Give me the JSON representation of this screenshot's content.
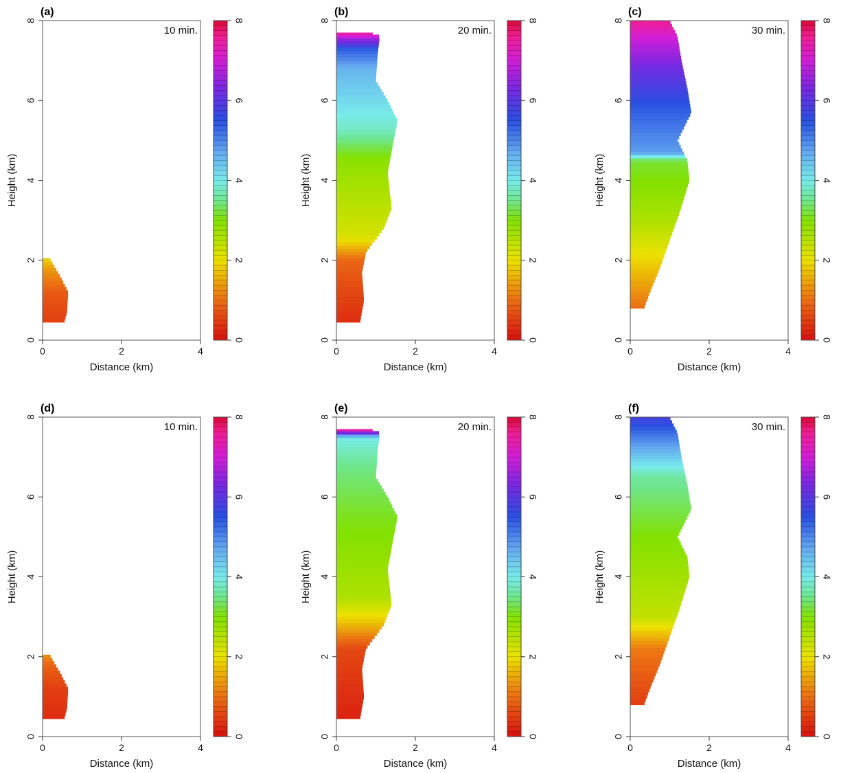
{
  "chart_data": [
    {
      "type": "heatmap",
      "panel": "(a)",
      "time_label": "10 min.",
      "xlabel": "Distance (km)",
      "ylabel": "Height (km)",
      "xlim": [
        0,
        4
      ],
      "ylim": [
        0,
        8
      ],
      "xticks": [
        "0",
        "2",
        "4"
      ],
      "yticks": [
        "0",
        "2",
        "4",
        "6",
        "8"
      ],
      "colorbar": {
        "range": [
          0,
          8
        ],
        "ticks": [
          "0",
          "2",
          "4",
          "6",
          "8"
        ]
      },
      "region": {
        "bottom_km": 0.45,
        "top_km": 2.05,
        "profile": [
          [
            0.45,
            0.55
          ],
          [
            0.7,
            0.62
          ],
          [
            1.2,
            0.65
          ],
          [
            1.6,
            0.45
          ],
          [
            1.85,
            0.3
          ],
          [
            2.05,
            0.18
          ]
        ]
      },
      "value_profile": [
        [
          0.45,
          0.5
        ],
        [
          1.2,
          0.8
        ],
        [
          1.8,
          1.4
        ],
        [
          2.05,
          1.9
        ]
      ]
    },
    {
      "type": "heatmap",
      "panel": "(b)",
      "time_label": "20 min.",
      "xlabel": "Distance (km)",
      "ylabel": "Height (km)",
      "xlim": [
        0,
        4
      ],
      "ylim": [
        0,
        8
      ],
      "xticks": [
        "0",
        "2",
        "4"
      ],
      "yticks": [
        "0",
        "2",
        "4",
        "6",
        "8"
      ],
      "colorbar": {
        "range": [
          0,
          8
        ],
        "ticks": [
          "0",
          "2",
          "4",
          "6",
          "8"
        ]
      },
      "region": {
        "bottom_km": 0.45,
        "top_km": 7.7,
        "profile": [
          [
            0.45,
            0.6
          ],
          [
            1.0,
            0.7
          ],
          [
            1.7,
            0.65
          ],
          [
            2.2,
            0.75
          ],
          [
            2.8,
            1.2
          ],
          [
            3.3,
            1.4
          ],
          [
            4.2,
            1.3
          ],
          [
            5.0,
            1.45
          ],
          [
            5.5,
            1.55
          ],
          [
            6.0,
            1.3
          ],
          [
            6.5,
            1.0
          ],
          [
            7.2,
            1.05
          ],
          [
            7.6,
            1.1
          ],
          [
            7.7,
            0.9
          ]
        ]
      },
      "value_profile": [
        [
          0.45,
          0.3
        ],
        [
          2.0,
          0.9
        ],
        [
          2.6,
          2.2
        ],
        [
          4.5,
          2.9
        ],
        [
          5.3,
          3.8
        ],
        [
          6.8,
          4.6
        ],
        [
          7.3,
          5.4
        ],
        [
          7.55,
          6.6
        ],
        [
          7.7,
          7.5
        ]
      ]
    },
    {
      "type": "heatmap",
      "panel": "(c)",
      "time_label": "30 min.",
      "xlabel": "Distance (km)",
      "ylabel": "Height (km)",
      "xlim": [
        0,
        4
      ],
      "ylim": [
        0,
        8
      ],
      "xticks": [
        "0",
        "2",
        "4"
      ],
      "yticks": [
        "0",
        "2",
        "4",
        "6",
        "8"
      ],
      "colorbar": {
        "range": [
          0,
          8
        ],
        "ticks": [
          "0",
          "2",
          "4",
          "6",
          "8"
        ]
      },
      "region": {
        "bottom_km": 0.8,
        "top_km": 8.0,
        "profile": [
          [
            0.8,
            0.35
          ],
          [
            1.2,
            0.5
          ],
          [
            1.8,
            0.75
          ],
          [
            2.5,
            1.0
          ],
          [
            3.2,
            1.25
          ],
          [
            4.0,
            1.5
          ],
          [
            4.5,
            1.45
          ],
          [
            5.0,
            1.2
          ],
          [
            5.7,
            1.55
          ],
          [
            6.3,
            1.45
          ],
          [
            7.0,
            1.3
          ],
          [
            7.6,
            1.2
          ],
          [
            8.0,
            1.0
          ]
        ]
      },
      "value_profile": [
        [
          0.8,
          1.0
        ],
        [
          2.0,
          1.9
        ],
        [
          3.0,
          2.6
        ],
        [
          4.5,
          3.2
        ],
        [
          4.7,
          4.8
        ],
        [
          5.8,
          5.4
        ],
        [
          6.8,
          6.2
        ],
        [
          7.5,
          6.9
        ],
        [
          8.0,
          7.6
        ]
      ]
    },
    {
      "type": "heatmap",
      "panel": "(d)",
      "time_label": "10 min.",
      "xlabel": "Distance (km)",
      "ylabel": "Height (km)",
      "xlim": [
        0,
        4
      ],
      "ylim": [
        0,
        8
      ],
      "xticks": [
        "0",
        "2",
        "4"
      ],
      "yticks": [
        "0",
        "2",
        "4",
        "6",
        "8"
      ],
      "colorbar": {
        "range": [
          0,
          8
        ],
        "ticks": [
          "0",
          "2",
          "4",
          "6",
          "8"
        ]
      },
      "region": {
        "bottom_km": 0.45,
        "top_km": 2.05,
        "profile": [
          [
            0.45,
            0.55
          ],
          [
            0.7,
            0.62
          ],
          [
            1.2,
            0.65
          ],
          [
            1.6,
            0.45
          ],
          [
            1.85,
            0.3
          ],
          [
            2.05,
            0.18
          ]
        ]
      },
      "value_profile": [
        [
          0.45,
          0.3
        ],
        [
          1.2,
          0.5
        ],
        [
          1.8,
          0.9
        ],
        [
          2.05,
          1.3
        ]
      ]
    },
    {
      "type": "heatmap",
      "panel": "(e)",
      "time_label": "20 min.",
      "xlabel": "Distance (km)",
      "ylabel": "Height (km)",
      "xlim": [
        0,
        4
      ],
      "ylim": [
        0,
        8
      ],
      "xticks": [
        "0",
        "2",
        "4"
      ],
      "yticks": [
        "0",
        "2",
        "4",
        "6",
        "8"
      ],
      "colorbar": {
        "range": [
          0,
          8
        ],
        "ticks": [
          "0",
          "2",
          "4",
          "6",
          "8"
        ]
      },
      "region": {
        "bottom_km": 0.45,
        "top_km": 7.7,
        "profile": [
          [
            0.45,
            0.6
          ],
          [
            1.0,
            0.7
          ],
          [
            1.7,
            0.65
          ],
          [
            2.2,
            0.75
          ],
          [
            2.8,
            1.2
          ],
          [
            3.3,
            1.4
          ],
          [
            4.2,
            1.3
          ],
          [
            5.0,
            1.45
          ],
          [
            5.5,
            1.55
          ],
          [
            6.0,
            1.3
          ],
          [
            6.5,
            1.0
          ],
          [
            7.2,
            1.05
          ],
          [
            7.6,
            1.1
          ],
          [
            7.7,
            0.9
          ]
        ]
      },
      "value_profile": [
        [
          0.45,
          0.2
        ],
        [
          2.2,
          0.6
        ],
        [
          2.9,
          1.8
        ],
        [
          3.5,
          2.6
        ],
        [
          5.5,
          3.1
        ],
        [
          6.8,
          3.5
        ],
        [
          7.5,
          4.0
        ],
        [
          7.62,
          6.5
        ],
        [
          7.7,
          7.5
        ]
      ]
    },
    {
      "type": "heatmap",
      "panel": "(f)",
      "time_label": "30 min.",
      "xlabel": "Distance (km)",
      "ylabel": "Height (km)",
      "xlim": [
        0,
        4
      ],
      "ylim": [
        0,
        8
      ],
      "xticks": [
        "0",
        "2",
        "4"
      ],
      "yticks": [
        "0",
        "2",
        "4",
        "6",
        "8"
      ],
      "colorbar": {
        "range": [
          0,
          8
        ],
        "ticks": [
          "0",
          "2",
          "4",
          "6",
          "8"
        ]
      },
      "region": {
        "bottom_km": 0.8,
        "top_km": 8.0,
        "profile": [
          [
            0.8,
            0.35
          ],
          [
            1.2,
            0.5
          ],
          [
            1.8,
            0.75
          ],
          [
            2.5,
            1.0
          ],
          [
            3.2,
            1.25
          ],
          [
            4.0,
            1.5
          ],
          [
            4.5,
            1.45
          ],
          [
            5.0,
            1.2
          ],
          [
            5.7,
            1.55
          ],
          [
            6.3,
            1.45
          ],
          [
            7.0,
            1.3
          ],
          [
            7.6,
            1.2
          ],
          [
            8.0,
            1.0
          ]
        ]
      },
      "value_profile": [
        [
          0.8,
          0.5
        ],
        [
          2.2,
          1.1
        ],
        [
          3.0,
          2.4
        ],
        [
          5.0,
          3.0
        ],
        [
          6.5,
          3.6
        ],
        [
          7.3,
          4.8
        ],
        [
          8.0,
          5.8
        ]
      ]
    }
  ]
}
